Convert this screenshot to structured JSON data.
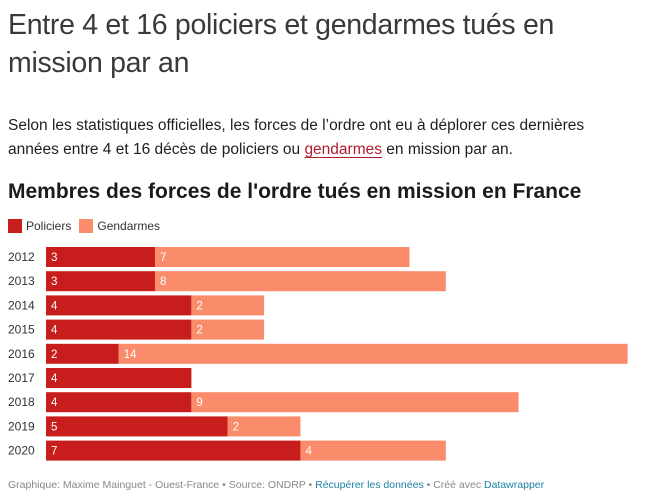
{
  "headline": "Entre 4 et 16 policiers et gendarmes tués en mission par an",
  "intro": {
    "before": "Selon les statistiques officielles, les forces de l’ordre ont eu à déplorer ces dernières années entre 4 et 16 décès de policiers ou ",
    "link": "gendarmes",
    "after": " en mission par an."
  },
  "chart_data": {
    "type": "bar",
    "orientation": "horizontal",
    "stacked": true,
    "title": "Membres des forces de l'ordre tués en mission en France",
    "legend_position": "top-left",
    "categories": [
      "2012",
      "2013",
      "2014",
      "2015",
      "2016",
      "2017",
      "2018",
      "2019",
      "2020"
    ],
    "series": [
      {
        "name": "Policiers",
        "color": "#c71e1d",
        "values": [
          3,
          3,
          4,
          4,
          2,
          4,
          4,
          5,
          7
        ]
      },
      {
        "name": "Gendarmes",
        "color": "#fa8c6b",
        "values": [
          7,
          8,
          2,
          2,
          14,
          0,
          9,
          2,
          4
        ]
      }
    ],
    "xlim": [
      0,
      16
    ]
  },
  "footer": {
    "credit": "Graphique: Maxime Mainguet - Ouest-France • Source: ONDRP • ",
    "data_link": "Récupérer les données",
    "sep": " • Créé avec ",
    "tool_link": "Datawrapper"
  }
}
